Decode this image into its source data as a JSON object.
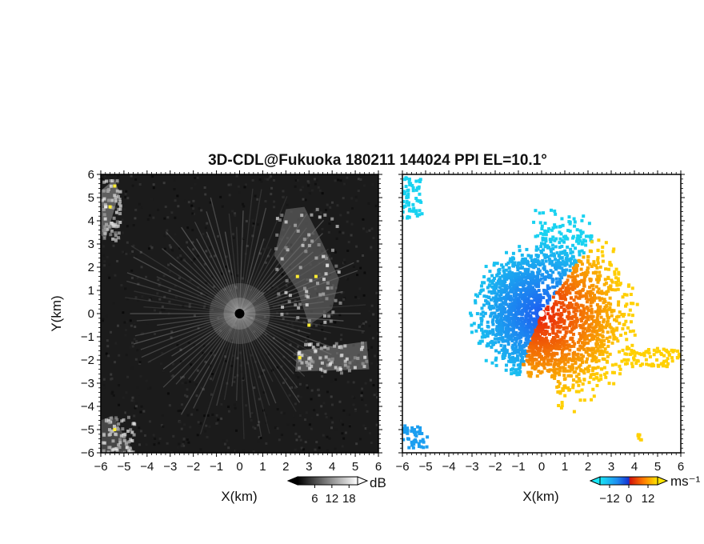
{
  "chart_data": {
    "type": "heatmap",
    "title": "3D-CDL@Fukuoka 180211 144024 PPI EL=10.1°",
    "panels": [
      {
        "name": "reflectivity",
        "xlabel": "X(km)",
        "ylabel": "Y(km)",
        "xlim": [
          -6,
          6
        ],
        "ylim": [
          -6,
          6
        ],
        "xticks": [
          "−6",
          "−5",
          "−4",
          "−3",
          "−2",
          "−1",
          "0",
          "1",
          "2",
          "3",
          "4",
          "5",
          "6"
        ],
        "yticks": [
          "6",
          "5",
          "4",
          "3",
          "2",
          "1",
          "0",
          "−1",
          "−2",
          "−3",
          "−4",
          "−5",
          "−6"
        ],
        "colormap": "grayscale",
        "colorbar": {
          "unit": "dB",
          "ticks": [
            "6",
            "12",
            "18"
          ],
          "tick_values": [
            6,
            12,
            18
          ],
          "range": [
            0,
            21
          ]
        },
        "background_color": "#1b1b1b",
        "center_marker_color": "#000000",
        "cloud_regions": [
          {
            "xy": [
              [
                2.0,
                4.5
              ],
              [
                1.5,
                2.5
              ],
              [
                2.5,
                1.0
              ],
              [
                3.0,
                -0.5
              ],
              [
                4.0,
                0.2
              ],
              [
                4.3,
                1.5
              ],
              [
                3.6,
                3.0
              ],
              [
                2.8,
                4.6
              ]
            ],
            "level": 0.6
          },
          {
            "xy": [
              [
                2.5,
                -1.6
              ],
              [
                5.5,
                -1.2
              ],
              [
                5.6,
                -2.4
              ],
              [
                2.4,
                -2.5
              ]
            ],
            "level": 0.7
          },
          {
            "xy": [
              [
                -6.0,
                5.3
              ],
              [
                -5.4,
                5.8
              ],
              [
                -5.2,
                5.2
              ],
              [
                -5.8,
                3.2
              ],
              [
                -6.0,
                3.4
              ]
            ],
            "level": 0.8
          },
          {
            "xy": [
              [
                -6.0,
                -4.6
              ],
              [
                -5.5,
                -4.4
              ],
              [
                -4.6,
                -5.9
              ],
              [
                -6.0,
                -6.0
              ]
            ],
            "level": 0.55
          }
        ],
        "hotspots": [
          [
            -5.4,
            5.5
          ],
          [
            -5.6,
            4.6
          ],
          [
            2.5,
            1.6
          ],
          [
            3.3,
            1.6
          ],
          [
            3.0,
            -0.5
          ],
          [
            2.6,
            -1.9
          ],
          [
            -5.4,
            -5.0
          ]
        ],
        "hotspot_color": "#ffee33"
      },
      {
        "name": "doppler-velocity",
        "xlabel": "X(km)",
        "xlim": [
          -6,
          6
        ],
        "ylim": [
          -6,
          6
        ],
        "xticks": [
          "−6",
          "−5",
          "−4",
          "−3",
          "−2",
          "−1",
          "0",
          "1",
          "2",
          "3",
          "4",
          "5",
          "6"
        ],
        "colormap": "diverging-cyan-blue-red-yellow",
        "colorbar": {
          "unit": "ms⁻¹",
          "ticks": [
            "−12",
            "0",
            "12"
          ],
          "tick_values": [
            -12,
            0,
            12
          ],
          "range": [
            -18,
            18
          ]
        },
        "colors": {
          "neg_far": "#19d2f0",
          "neg_near": "#1e5bf0",
          "pos_near": "#e8200a",
          "pos_far": "#ffd000",
          "background": "#ffffff"
        },
        "echo_regions": [
          {
            "angles_deg": [
              95,
              250
            ],
            "radius_km": [
              0,
              3.2
            ],
            "sign": "negative"
          },
          {
            "angles_deg": [
              55,
              95
            ],
            "radius_km": [
              0,
              4.8
            ],
            "sign": "negative"
          },
          {
            "angles_deg": [
              -80,
              55
            ],
            "radius_km": [
              0,
              4.5
            ],
            "sign": "positive"
          },
          {
            "angles_deg": [
              -110,
              -80
            ],
            "radius_km": [
              0,
              3.0
            ],
            "sign": "positive"
          }
        ],
        "patches": [
          {
            "center": [
              -5.6,
              5.0
            ],
            "size": [
              0.9,
              1.8
            ],
            "velocity": -16
          },
          {
            "center": [
              -5.5,
              -5.3
            ],
            "size": [
              1.2,
              1.0
            ],
            "velocity": -9
          },
          {
            "center": [
              4.9,
              -1.9
            ],
            "size": [
              2.6,
              0.8
            ],
            "velocity": 12
          },
          {
            "center": [
              4.2,
              -5.3
            ],
            "size": [
              0.3,
              0.3
            ],
            "velocity": 12
          }
        ]
      }
    ]
  }
}
